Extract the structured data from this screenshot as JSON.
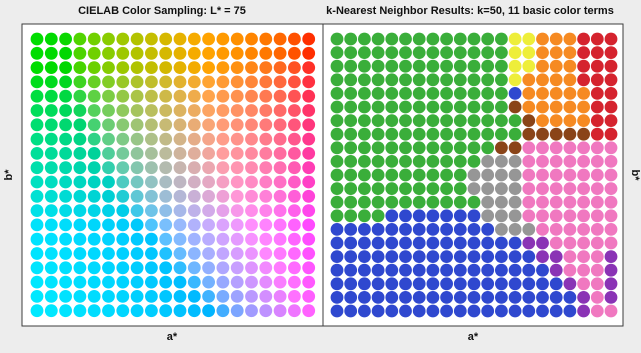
{
  "chart_data": [
    {
      "type": "scatter",
      "title": "CIELAB Color Sampling: L* = 75",
      "xlabel": "a*",
      "ylabel": "b*",
      "grid_size": 20,
      "L": 75,
      "a_range": [
        -100,
        100
      ],
      "b_range": [
        -100,
        100
      ],
      "encoding": "each dot is a CIELAB color (L*=75) on a 20 x 20 a*/b* grid, filled with its own color",
      "axis_ticks": "none"
    },
    {
      "type": "scatter",
      "title": "k-Nearest Neighbor Results: k=50, 11 basic color terms",
      "xlabel": "a*",
      "ylabel": "b*",
      "k": 50,
      "grid_size": 20,
      "axis_ticks": "none",
      "ylabel_side": "right",
      "class_colors": {
        "green": "#3aae3a",
        "yellow": "#eeee3a",
        "orange": "#f68a22",
        "red": "#d5232e",
        "brown": "#8a4418",
        "gray": "#969696",
        "pink": "#f078c0",
        "purple": "#8a33b5",
        "blue": "#2f48cf"
      },
      "class_grid": [
        "GGGGGGGGGGGGGYYOOORRR",
        "GGGGGGGGGGGGGYYOOORRR",
        "GGGGGGGGGGGGGYYOOORRR",
        "GGGGGGGGGGGGGYOOOORRR",
        "GGGGGGGGGGGGGBOOOOORR",
        "GGGGGGGGGGGGGNOOOOORR",
        "GGGGGGGGGGGGGGNOOOORR",
        "GGGGGGGGGGGGGGNNNNNRR",
        "GGGGGGGGGGGGNNPPPPPPP",
        "GGGGGGGGGGGAAAPPPPPPP",
        "GGGGGGGGGGAAAAPPPPPPP",
        "GGGGGGGGGGAAAAPPPPPPP",
        "GGGGGGGGGGGAAAPPPPPPP",
        "GGGGBBBBBBBAAAPPPPPPP",
        "BBBBBBBBBBBBAAAPPPPPP",
        "BBBBBBBBBBBBBBUUPPPPP",
        "BBBBBBBBBBBBBBBUUPPPU",
        "BBBBBBBBBBBBBBBBUPPPU",
        "BBBBBBBBBBBBBBBBBUPPU",
        "BBBBBBBBBBBBBBBBBBUPU",
        "BBBBBBBBBBBBBBBBBBUPP"
      ]
    }
  ]
}
